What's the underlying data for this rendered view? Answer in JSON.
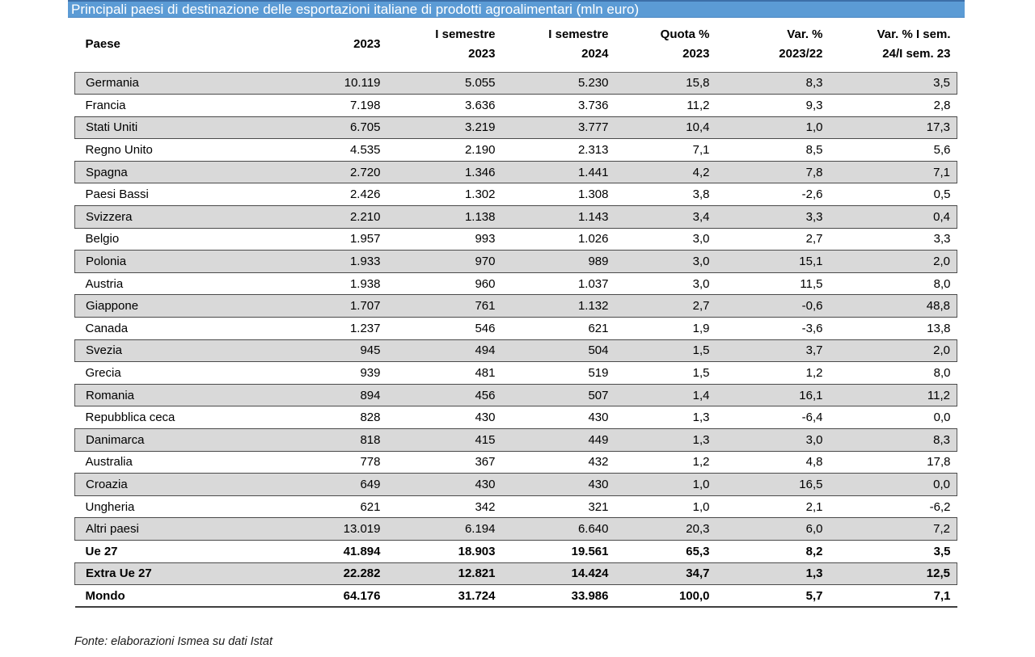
{
  "title": "Principali paesi di destinazione delle esportazioni italiane di prodotti agroalimentari (mln euro)",
  "footer": "Fonte: elaborazioni Ismea su dati Istat",
  "colors": {
    "header_bar": "#5b9bd5",
    "row_shade": "#d9d9d9"
  },
  "table": {
    "columns": [
      {
        "line1": "Paese",
        "line2": ""
      },
      {
        "line1": "2023",
        "line2": ""
      },
      {
        "line1": "I semestre",
        "line2": "2023"
      },
      {
        "line1": "I semestre",
        "line2": "2024"
      },
      {
        "line1": "Quota %",
        "line2": "2023"
      },
      {
        "line1": "Var. %",
        "line2": "2023/22"
      },
      {
        "line1": "Var. % I sem.",
        "line2": "24/I sem. 23"
      }
    ],
    "rows": [
      {
        "cells": [
          "Germania",
          "10.119",
          "5.055",
          "5.230",
          "15,8",
          "8,3",
          "3,5"
        ],
        "shaded": true,
        "bold": false
      },
      {
        "cells": [
          "Francia",
          "7.198",
          "3.636",
          "3.736",
          "11,2",
          "9,3",
          "2,8"
        ],
        "shaded": false,
        "bold": false
      },
      {
        "cells": [
          "Stati Uniti",
          "6.705",
          "3.219",
          "3.777",
          "10,4",
          "1,0",
          "17,3"
        ],
        "shaded": true,
        "bold": false
      },
      {
        "cells": [
          "Regno Unito",
          "4.535",
          "2.190",
          "2.313",
          "7,1",
          "8,5",
          "5,6"
        ],
        "shaded": false,
        "bold": false
      },
      {
        "cells": [
          "Spagna",
          "2.720",
          "1.346",
          "1.441",
          "4,2",
          "7,8",
          "7,1"
        ],
        "shaded": true,
        "bold": false
      },
      {
        "cells": [
          "Paesi Bassi",
          "2.426",
          "1.302",
          "1.308",
          "3,8",
          "-2,6",
          "0,5"
        ],
        "shaded": false,
        "bold": false
      },
      {
        "cells": [
          "Svizzera",
          "2.210",
          "1.138",
          "1.143",
          "3,4",
          "3,3",
          "0,4"
        ],
        "shaded": true,
        "bold": false
      },
      {
        "cells": [
          "Belgio",
          "1.957",
          "993",
          "1.026",
          "3,0",
          "2,7",
          "3,3"
        ],
        "shaded": false,
        "bold": false
      },
      {
        "cells": [
          "Polonia",
          "1.933",
          "970",
          "989",
          "3,0",
          "15,1",
          "2,0"
        ],
        "shaded": true,
        "bold": false
      },
      {
        "cells": [
          "Austria",
          "1.938",
          "960",
          "1.037",
          "3,0",
          "11,5",
          "8,0"
        ],
        "shaded": false,
        "bold": false
      },
      {
        "cells": [
          "Giappone",
          "1.707",
          "761",
          "1.132",
          "2,7",
          "-0,6",
          "48,8"
        ],
        "shaded": true,
        "bold": false
      },
      {
        "cells": [
          "Canada",
          "1.237",
          "546",
          "621",
          "1,9",
          "-3,6",
          "13,8"
        ],
        "shaded": false,
        "bold": false
      },
      {
        "cells": [
          "Svezia",
          "945",
          "494",
          "504",
          "1,5",
          "3,7",
          "2,0"
        ],
        "shaded": true,
        "bold": false
      },
      {
        "cells": [
          "Grecia",
          "939",
          "481",
          "519",
          "1,5",
          "1,2",
          "8,0"
        ],
        "shaded": false,
        "bold": false
      },
      {
        "cells": [
          "Romania",
          "894",
          "456",
          "507",
          "1,4",
          "16,1",
          "11,2"
        ],
        "shaded": true,
        "bold": false
      },
      {
        "cells": [
          "Repubblica ceca",
          "828",
          "430",
          "430",
          "1,3",
          "-6,4",
          "0,0"
        ],
        "shaded": false,
        "bold": false
      },
      {
        "cells": [
          "Danimarca",
          "818",
          "415",
          "449",
          "1,3",
          "3,0",
          "8,3"
        ],
        "shaded": true,
        "bold": false
      },
      {
        "cells": [
          "Australia",
          "778",
          "367",
          "432",
          "1,2",
          "4,8",
          "17,8"
        ],
        "shaded": false,
        "bold": false
      },
      {
        "cells": [
          "Croazia",
          "649",
          "430",
          "430",
          "1,0",
          "16,5",
          "0,0"
        ],
        "shaded": true,
        "bold": false
      },
      {
        "cells": [
          "Ungheria",
          "621",
          "342",
          "321",
          "1,0",
          "2,1",
          "-6,2"
        ],
        "shaded": false,
        "bold": false
      },
      {
        "cells": [
          "Altri paesi",
          "13.019",
          "6.194",
          "6.640",
          "20,3",
          "6,0",
          "7,2"
        ],
        "shaded": true,
        "bold": false
      },
      {
        "cells": [
          "Ue 27",
          "41.894",
          "18.903",
          "19.561",
          "65,3",
          "8,2",
          "3,5"
        ],
        "shaded": false,
        "bold": true
      },
      {
        "cells": [
          "Extra Ue 27",
          "22.282",
          "12.821",
          "14.424",
          "34,7",
          "1,3",
          "12,5"
        ],
        "shaded": true,
        "bold": true
      },
      {
        "cells": [
          "Mondo",
          "64.176",
          "31.724",
          "33.986",
          "100,0",
          "5,7",
          "7,1"
        ],
        "shaded": false,
        "bold": true
      }
    ]
  }
}
